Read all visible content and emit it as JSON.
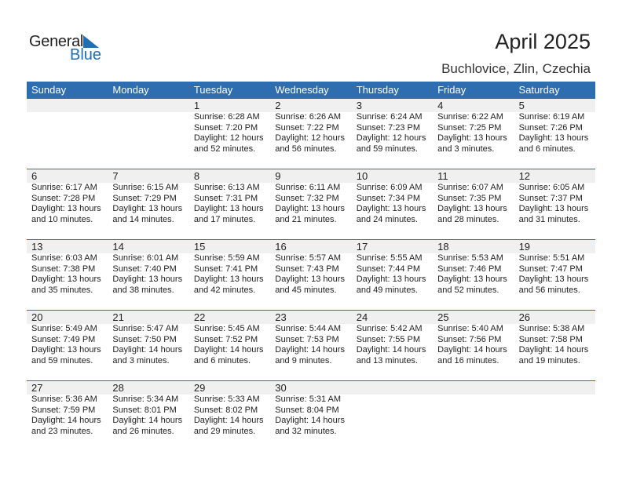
{
  "logo": {
    "text1": "General",
    "text2": "Blue"
  },
  "title": "April 2025",
  "location": "Buchlovice, Zlin, Czechia",
  "days": [
    "Sunday",
    "Monday",
    "Tuesday",
    "Wednesday",
    "Thursday",
    "Friday",
    "Saturday"
  ],
  "colors": {
    "header": "#2e6db0",
    "strip": "#f0f0f0"
  },
  "weeks": [
    [
      null,
      null,
      {
        "date": "1",
        "sunrise": "Sunrise: 6:28 AM",
        "sunset": "Sunset: 7:20 PM",
        "daylight": "Daylight: 12 hours",
        "minutes": "and 52 minutes."
      },
      {
        "date": "2",
        "sunrise": "Sunrise: 6:26 AM",
        "sunset": "Sunset: 7:22 PM",
        "daylight": "Daylight: 12 hours",
        "minutes": "and 56 minutes."
      },
      {
        "date": "3",
        "sunrise": "Sunrise: 6:24 AM",
        "sunset": "Sunset: 7:23 PM",
        "daylight": "Daylight: 12 hours",
        "minutes": "and 59 minutes."
      },
      {
        "date": "4",
        "sunrise": "Sunrise: 6:22 AM",
        "sunset": "Sunset: 7:25 PM",
        "daylight": "Daylight: 13 hours",
        "minutes": "and 3 minutes."
      },
      {
        "date": "5",
        "sunrise": "Sunrise: 6:19 AM",
        "sunset": "Sunset: 7:26 PM",
        "daylight": "Daylight: 13 hours",
        "minutes": "and 6 minutes."
      }
    ],
    [
      {
        "date": "6",
        "sunrise": "Sunrise: 6:17 AM",
        "sunset": "Sunset: 7:28 PM",
        "daylight": "Daylight: 13 hours",
        "minutes": "and 10 minutes."
      },
      {
        "date": "7",
        "sunrise": "Sunrise: 6:15 AM",
        "sunset": "Sunset: 7:29 PM",
        "daylight": "Daylight: 13 hours",
        "minutes": "and 14 minutes."
      },
      {
        "date": "8",
        "sunrise": "Sunrise: 6:13 AM",
        "sunset": "Sunset: 7:31 PM",
        "daylight": "Daylight: 13 hours",
        "minutes": "and 17 minutes."
      },
      {
        "date": "9",
        "sunrise": "Sunrise: 6:11 AM",
        "sunset": "Sunset: 7:32 PM",
        "daylight": "Daylight: 13 hours",
        "minutes": "and 21 minutes."
      },
      {
        "date": "10",
        "sunrise": "Sunrise: 6:09 AM",
        "sunset": "Sunset: 7:34 PM",
        "daylight": "Daylight: 13 hours",
        "minutes": "and 24 minutes."
      },
      {
        "date": "11",
        "sunrise": "Sunrise: 6:07 AM",
        "sunset": "Sunset: 7:35 PM",
        "daylight": "Daylight: 13 hours",
        "minutes": "and 28 minutes."
      },
      {
        "date": "12",
        "sunrise": "Sunrise: 6:05 AM",
        "sunset": "Sunset: 7:37 PM",
        "daylight": "Daylight: 13 hours",
        "minutes": "and 31 minutes."
      }
    ],
    [
      {
        "date": "13",
        "sunrise": "Sunrise: 6:03 AM",
        "sunset": "Sunset: 7:38 PM",
        "daylight": "Daylight: 13 hours",
        "minutes": "and 35 minutes."
      },
      {
        "date": "14",
        "sunrise": "Sunrise: 6:01 AM",
        "sunset": "Sunset: 7:40 PM",
        "daylight": "Daylight: 13 hours",
        "minutes": "and 38 minutes."
      },
      {
        "date": "15",
        "sunrise": "Sunrise: 5:59 AM",
        "sunset": "Sunset: 7:41 PM",
        "daylight": "Daylight: 13 hours",
        "minutes": "and 42 minutes."
      },
      {
        "date": "16",
        "sunrise": "Sunrise: 5:57 AM",
        "sunset": "Sunset: 7:43 PM",
        "daylight": "Daylight: 13 hours",
        "minutes": "and 45 minutes."
      },
      {
        "date": "17",
        "sunrise": "Sunrise: 5:55 AM",
        "sunset": "Sunset: 7:44 PM",
        "daylight": "Daylight: 13 hours",
        "minutes": "and 49 minutes."
      },
      {
        "date": "18",
        "sunrise": "Sunrise: 5:53 AM",
        "sunset": "Sunset: 7:46 PM",
        "daylight": "Daylight: 13 hours",
        "minutes": "and 52 minutes."
      },
      {
        "date": "19",
        "sunrise": "Sunrise: 5:51 AM",
        "sunset": "Sunset: 7:47 PM",
        "daylight": "Daylight: 13 hours",
        "minutes": "and 56 minutes."
      }
    ],
    [
      {
        "date": "20",
        "sunrise": "Sunrise: 5:49 AM",
        "sunset": "Sunset: 7:49 PM",
        "daylight": "Daylight: 13 hours",
        "minutes": "and 59 minutes."
      },
      {
        "date": "21",
        "sunrise": "Sunrise: 5:47 AM",
        "sunset": "Sunset: 7:50 PM",
        "daylight": "Daylight: 14 hours",
        "minutes": "and 3 minutes."
      },
      {
        "date": "22",
        "sunrise": "Sunrise: 5:45 AM",
        "sunset": "Sunset: 7:52 PM",
        "daylight": "Daylight: 14 hours",
        "minutes": "and 6 minutes."
      },
      {
        "date": "23",
        "sunrise": "Sunrise: 5:44 AM",
        "sunset": "Sunset: 7:53 PM",
        "daylight": "Daylight: 14 hours",
        "minutes": "and 9 minutes."
      },
      {
        "date": "24",
        "sunrise": "Sunrise: 5:42 AM",
        "sunset": "Sunset: 7:55 PM",
        "daylight": "Daylight: 14 hours",
        "minutes": "and 13 minutes."
      },
      {
        "date": "25",
        "sunrise": "Sunrise: 5:40 AM",
        "sunset": "Sunset: 7:56 PM",
        "daylight": "Daylight: 14 hours",
        "minutes": "and 16 minutes."
      },
      {
        "date": "26",
        "sunrise": "Sunrise: 5:38 AM",
        "sunset": "Sunset: 7:58 PM",
        "daylight": "Daylight: 14 hours",
        "minutes": "and 19 minutes."
      }
    ],
    [
      {
        "date": "27",
        "sunrise": "Sunrise: 5:36 AM",
        "sunset": "Sunset: 7:59 PM",
        "daylight": "Daylight: 14 hours",
        "minutes": "and 23 minutes."
      },
      {
        "date": "28",
        "sunrise": "Sunrise: 5:34 AM",
        "sunset": "Sunset: 8:01 PM",
        "daylight": "Daylight: 14 hours",
        "minutes": "and 26 minutes."
      },
      {
        "date": "29",
        "sunrise": "Sunrise: 5:33 AM",
        "sunset": "Sunset: 8:02 PM",
        "daylight": "Daylight: 14 hours",
        "minutes": "and 29 minutes."
      },
      {
        "date": "30",
        "sunrise": "Sunrise: 5:31 AM",
        "sunset": "Sunset: 8:04 PM",
        "daylight": "Daylight: 14 hours",
        "minutes": "and 32 minutes."
      },
      null,
      null,
      null
    ]
  ]
}
